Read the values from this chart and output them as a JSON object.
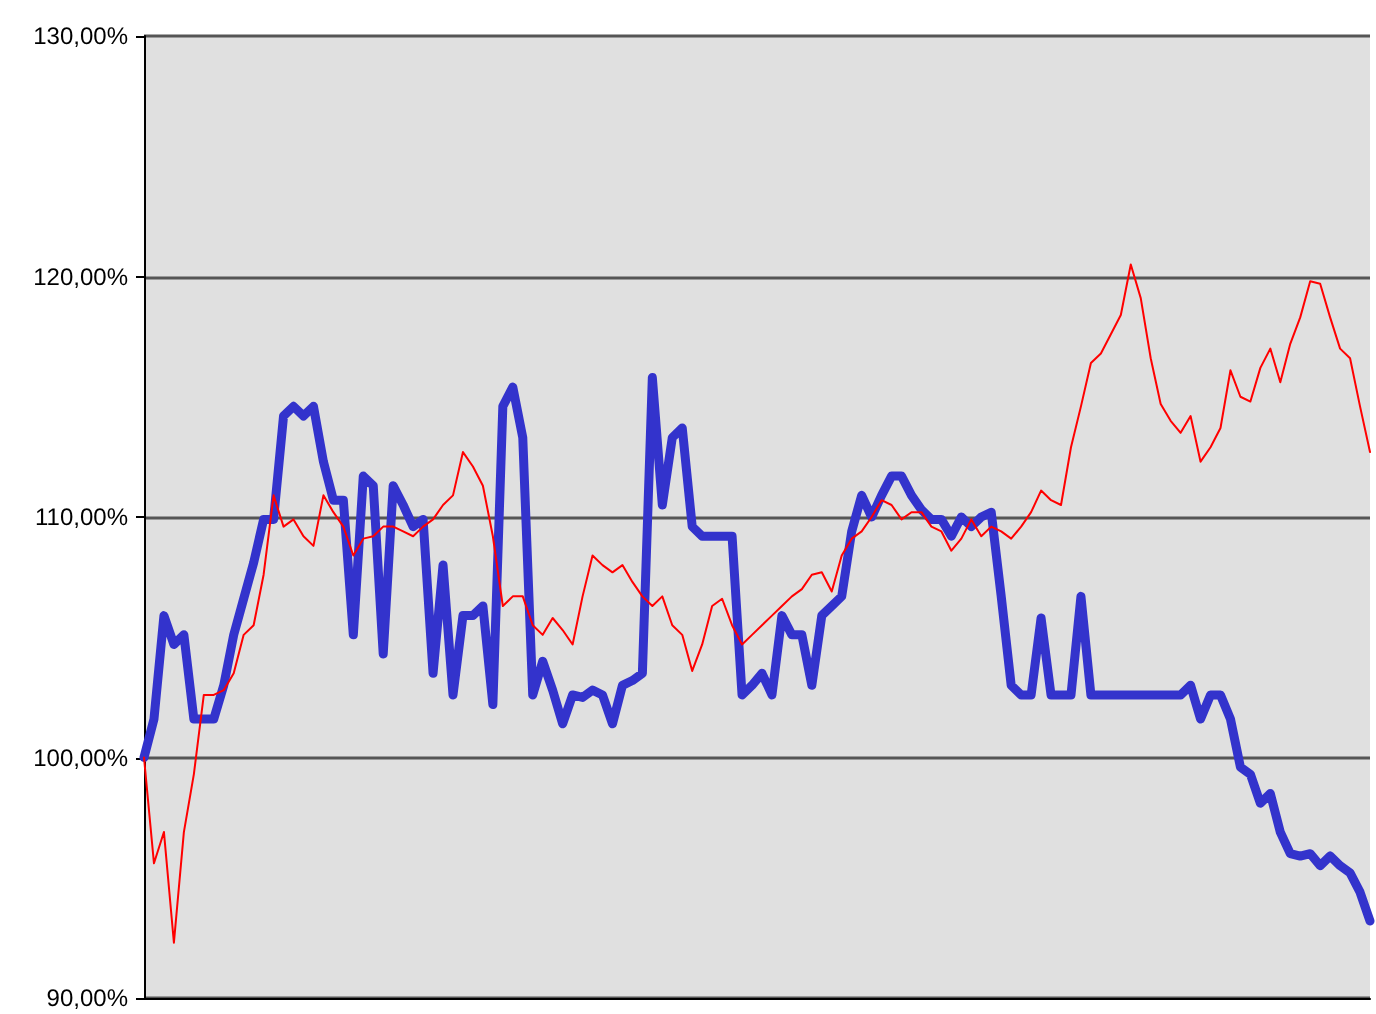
{
  "chart_data": {
    "type": "line",
    "categories": [
      null,
      null,
      null,
      null,
      null,
      null,
      null,
      null,
      null,
      null,
      null,
      null,
      null,
      null,
      null,
      null,
      null,
      null,
      null,
      null,
      null,
      null,
      null,
      null,
      null,
      null,
      null,
      null,
      null,
      null,
      null,
      null,
      null,
      null,
      null,
      null,
      null,
      null,
      null,
      null,
      null,
      null,
      null,
      null,
      null,
      null,
      null,
      null,
      null,
      null,
      null,
      null,
      null,
      null,
      null,
      null,
      null,
      null,
      null,
      null,
      null,
      null,
      null,
      null,
      null,
      null,
      null,
      null,
      null,
      null,
      null,
      null,
      null,
      null,
      null,
      null,
      null,
      null,
      null,
      null,
      null,
      null,
      null,
      null,
      null,
      null,
      null,
      null,
      null,
      null,
      null,
      null,
      null,
      null,
      null,
      null,
      null,
      null,
      null,
      null,
      null,
      null,
      null,
      null,
      null,
      null,
      null,
      null,
      null,
      null,
      null,
      null,
      null,
      null,
      null,
      null,
      null,
      null,
      null,
      null,
      null,
      null,
      null,
      null
    ],
    "series": [
      {
        "color": "#ff0000",
        "values": [
          100,
          95.6,
          96.9,
          92.3,
          96.9,
          99.3,
          102.6,
          102.6,
          102.8,
          103.5,
          105.1,
          105.5,
          107.6,
          110.9,
          109.6,
          109.9,
          109.2,
          108.8,
          110.9,
          110.2,
          109.6,
          108.4,
          109.1,
          109.2,
          109.6,
          109.6,
          109.4,
          109.2,
          109.6,
          109.9,
          110.5,
          110.9,
          112.7,
          112.1,
          111.3,
          109.2,
          106.3,
          106.7,
          106.7,
          105.5,
          105.1,
          105.8,
          105.3,
          104.7,
          106.7,
          108.4,
          108.0,
          107.7,
          108.0,
          107.3,
          106.7,
          106.3,
          106.7,
          105.5,
          105.1,
          103.6,
          104.7,
          106.3,
          106.6,
          105.5,
          104.7,
          105.1,
          105.5,
          105.9,
          106.3,
          106.7,
          107.0,
          107.6,
          107.7,
          106.9,
          108.4,
          109.1,
          109.4,
          110.0,
          110.7,
          110.5,
          109.9,
          110.2,
          110.2,
          109.6,
          109.4,
          108.6,
          109.1,
          109.9,
          109.2,
          109.6,
          109.4,
          109.1,
          109.6,
          110.2,
          111.1,
          110.7,
          110.5,
          112.9,
          114.6,
          116.4,
          116.8,
          117.6,
          118.4,
          120.5,
          119.1,
          116.6,
          114.7,
          114.0,
          113.5,
          114.2,
          112.3,
          112.9,
          113.7,
          116.1,
          115.0,
          114.8,
          116.2,
          117.0,
          115.6,
          117.2,
          118.3,
          119.8,
          119.7,
          118.3,
          117.0,
          116.6,
          114.6,
          112.7
        ]
      },
      {
        "color": "#3333cc",
        "values": [
          100,
          101.6,
          105.9,
          104.7,
          105.1,
          101.6,
          101.6,
          101.6,
          103.0,
          105.1,
          106.6,
          108.1,
          109.9,
          109.9,
          114.2,
          114.6,
          114.2,
          114.6,
          112.3,
          110.7,
          110.7,
          105.1,
          111.7,
          111.3,
          104.3,
          111.3,
          110.5,
          109.6,
          109.9,
          103.5,
          108.0,
          102.6,
          105.9,
          105.9,
          106.3,
          102.2,
          114.6,
          115.4,
          113.3,
          102.6,
          104.0,
          102.8,
          101.4,
          102.6,
          102.5,
          102.8,
          102.6,
          101.4,
          103.0,
          103.2,
          103.5,
          115.8,
          110.5,
          113.3,
          113.7,
          109.6,
          109.2,
          109.2,
          109.2,
          109.2,
          102.6,
          103.0,
          103.5,
          102.6,
          105.9,
          105.1,
          105.1,
          103.0,
          105.9,
          106.3,
          106.7,
          109.4,
          110.9,
          110.0,
          110.9,
          111.7,
          111.7,
          110.9,
          110.3,
          109.9,
          109.9,
          109.2,
          110.0,
          109.6,
          110.0,
          110.2,
          106.7,
          103.0,
          102.6,
          102.6,
          105.8,
          102.6,
          102.6,
          102.6,
          106.7,
          102.6,
          102.6,
          102.6,
          102.6,
          102.6,
          102.6,
          102.6,
          102.6,
          102.6,
          102.6,
          103.0,
          101.6,
          102.6,
          102.6,
          101.6,
          99.6,
          99.3,
          98.1,
          98.5,
          96.9,
          96.0,
          95.9,
          96.0,
          95.5,
          95.9,
          95.5,
          95.2,
          94.4,
          93.2
        ]
      }
    ],
    "ylim": [
      90,
      130
    ],
    "yticks": [
      {
        "value": 90,
        "label": "90,00%"
      },
      {
        "value": 100,
        "label": "100,00%"
      },
      {
        "value": 110,
        "label": "110,00%"
      },
      {
        "value": 120,
        "label": "120,00%"
      },
      {
        "value": 130,
        "label": "130,00%"
      }
    ],
    "grid": "y",
    "marker": "none",
    "line_style": "solid"
  }
}
